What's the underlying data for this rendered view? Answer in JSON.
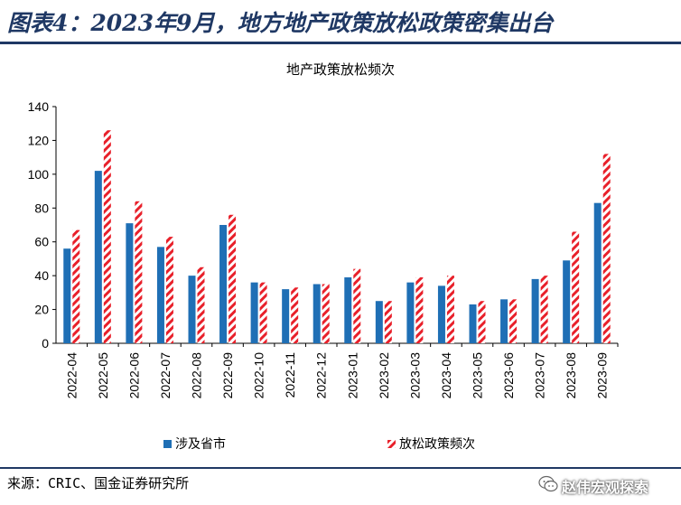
{
  "figure": {
    "title": "图表4：2023年9月，地方地产政策放松政策密集出台",
    "source": "来源：CRIC、国金证券研究所",
    "watermark": "赵伟宏观探索",
    "watermark_icon": "wechat-icon"
  },
  "colors": {
    "series1": "#1f6fb5",
    "series2": "#e8202a",
    "title": "#1f3864"
  },
  "chart_data": {
    "type": "bar",
    "title": "地产政策放松频次",
    "xlabel": "",
    "ylabel": "",
    "ylim": [
      0,
      140
    ],
    "yticks": [
      0,
      20,
      40,
      60,
      80,
      100,
      120,
      140
    ],
    "grid": false,
    "legend": "bottom",
    "categories": [
      "2022-04",
      "2022-05",
      "2022-06",
      "2022-07",
      "2022-08",
      "2022-09",
      "2022-10",
      "2022-11",
      "2022-12",
      "2023-01",
      "2023-02",
      "2023-03",
      "2023-04",
      "2023-05",
      "2023-06",
      "2023-07",
      "2023-08",
      "2023-09"
    ],
    "series": [
      {
        "name": "涉及省市",
        "values": [
          56,
          102,
          71,
          57,
          40,
          70,
          36,
          32,
          35,
          39,
          25,
          36,
          34,
          23,
          26,
          38,
          49,
          83
        ]
      },
      {
        "name": "放松政策频次",
        "values": [
          67,
          126,
          84,
          63,
          45,
          76,
          36,
          33,
          35,
          44,
          25,
          39,
          40,
          25,
          26,
          40,
          66,
          112
        ]
      }
    ]
  }
}
